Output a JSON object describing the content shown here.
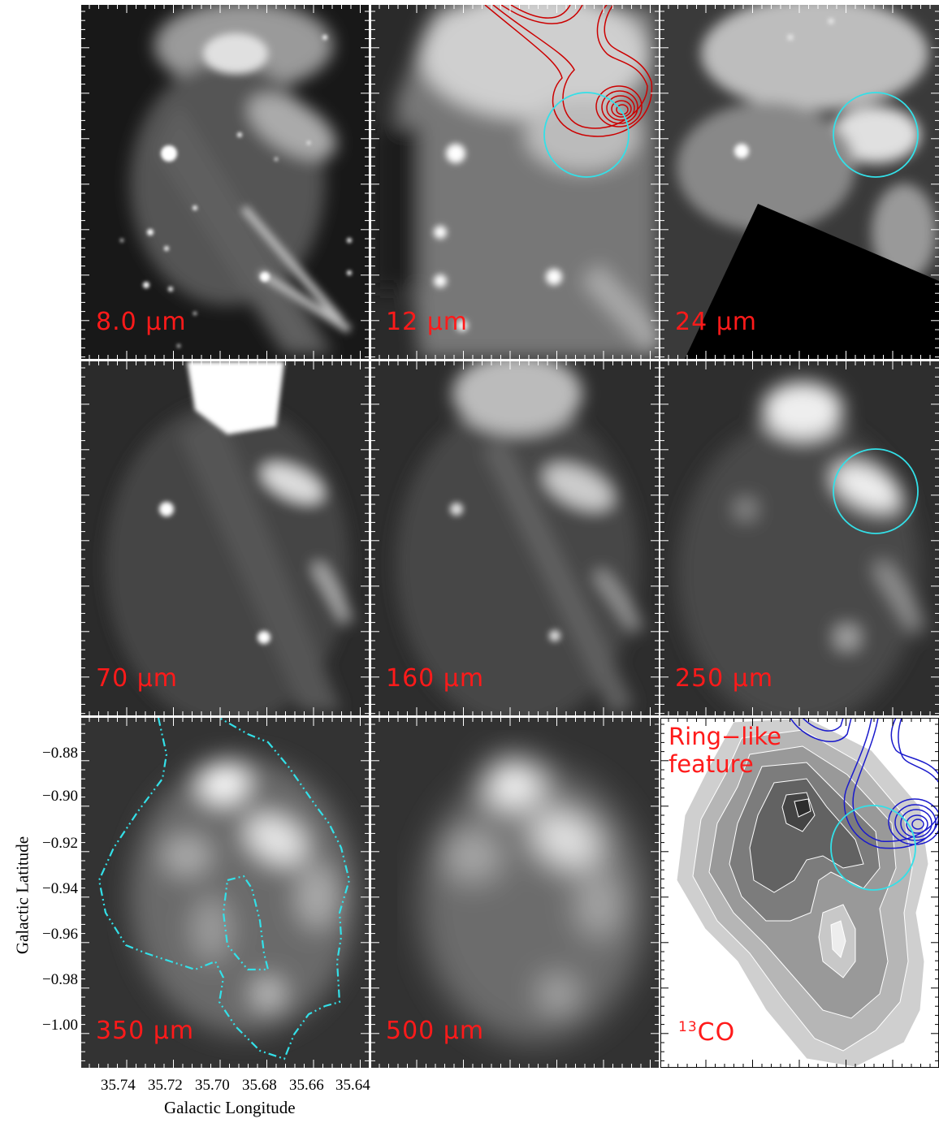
{
  "panels": [
    {
      "id": "p1",
      "label": "8.0 μm"
    },
    {
      "id": "p2",
      "label": "12 μm"
    },
    {
      "id": "p3",
      "label": "24 μm"
    },
    {
      "id": "p4",
      "label": "70 μm"
    },
    {
      "id": "p5",
      "label": "160 μm"
    },
    {
      "id": "p6",
      "label": "250 μm"
    },
    {
      "id": "p7",
      "label": "350 μm"
    },
    {
      "id": "p8",
      "label": "500 μm"
    },
    {
      "id": "p9",
      "label_sup": "13",
      "label": "CO",
      "note_line1": "Ring−like",
      "note_line2": "feature"
    }
  ],
  "axes": {
    "ylabel": "Galactic Latitude",
    "xlabel": "Galactic Longitude",
    "yticks": [
      "−0.88",
      "−0.90",
      "−0.92",
      "−0.94",
      "−0.96",
      "−0.98",
      "−1.00"
    ],
    "xticks": [
      "35.74",
      "35.72",
      "35.70",
      "35.68",
      "35.66",
      "35.64"
    ]
  },
  "colors": {
    "label": "#ff1a1a",
    "circle": "#33e0e8",
    "red_contour": "#cc0000",
    "blue_contour": "#1a1acc"
  }
}
